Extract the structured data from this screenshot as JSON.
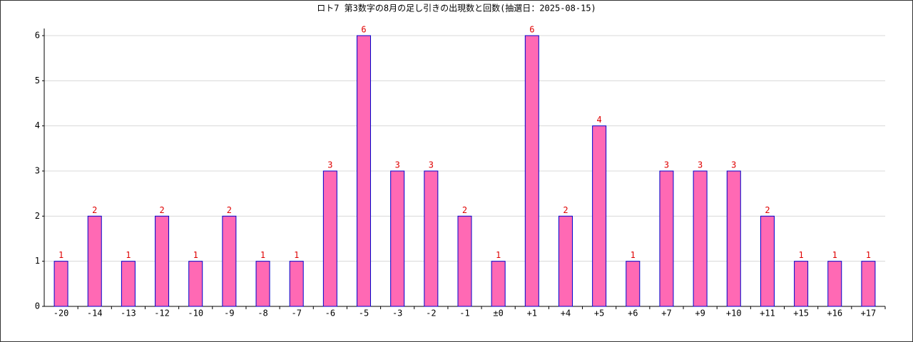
{
  "chart_data": {
    "type": "bar",
    "title": "ロト7 第3数字の8月の足し引きの出現数と回数(抽選日：2025-08-15)",
    "categories": [
      "-20",
      "-14",
      "-13",
      "-12",
      "-10",
      "-9",
      "-8",
      "-7",
      "-6",
      "-5",
      "-3",
      "-2",
      "-1",
      "±0",
      "+1",
      "+4",
      "+5",
      "+6",
      "+7",
      "+9",
      "+10",
      "+11",
      "+15",
      "+16",
      "+17"
    ],
    "values": [
      1,
      2,
      1,
      2,
      1,
      2,
      1,
      1,
      3,
      6,
      3,
      3,
      2,
      1,
      6,
      2,
      4,
      1,
      3,
      3,
      3,
      2,
      1,
      1,
      1
    ],
    "color": "#ff69b4",
    "edge_color": "#0000cc",
    "label_color": "#e00000",
    "ylim": [
      0,
      6
    ],
    "yticks": [
      0,
      1,
      2,
      3,
      4,
      5,
      6
    ],
    "grid": true
  }
}
